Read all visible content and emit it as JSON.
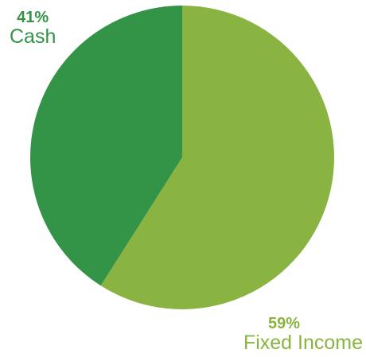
{
  "chart_data": {
    "type": "pie",
    "slices": [
      {
        "name": "Fixed Income",
        "value": 59,
        "label": "59%",
        "color": "#8ab441"
      },
      {
        "name": "Cash",
        "value": 41,
        "label": "41%",
        "color": "#339447"
      }
    ]
  }
}
